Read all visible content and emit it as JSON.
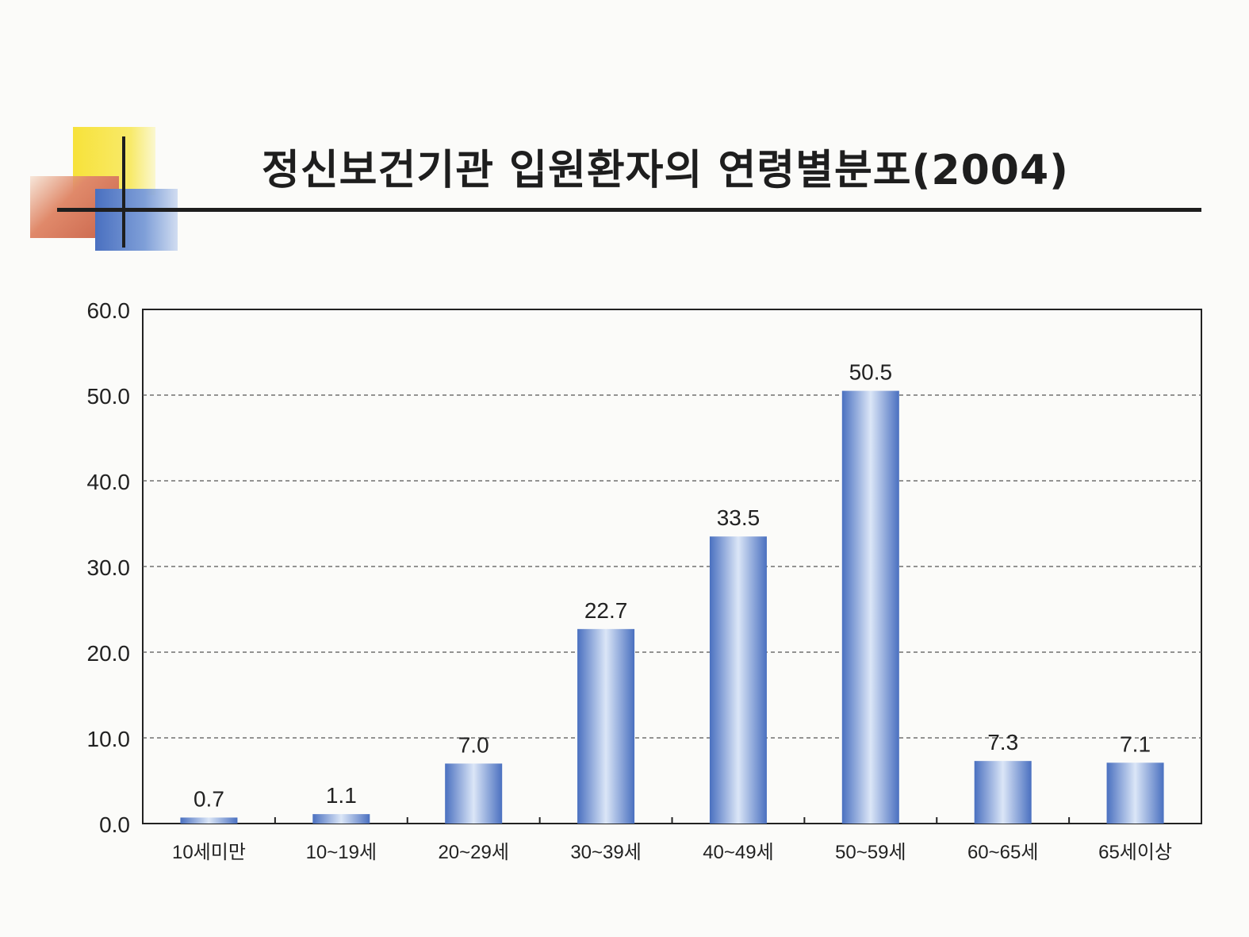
{
  "title": "정신보건기관 입원환자의 연령별분포(2004)",
  "chart_data": {
    "type": "bar",
    "title": "정신보건기관 입원환자의 연령별분포(2004)",
    "categories": [
      "10세미만",
      "10~19세",
      "20~29세",
      "30~39세",
      "40~49세",
      "50~59세",
      "60~65세",
      "65세이상"
    ],
    "values": [
      0.7,
      1.1,
      7.0,
      22.7,
      33.5,
      50.5,
      7.3,
      7.1
    ],
    "data_labels": [
      "0.7",
      "1.1",
      "7.0",
      "22.7",
      "33.5",
      "50.5",
      "7.3",
      "7.1"
    ],
    "y_ticks": [
      "0.0",
      "10.0",
      "20.0",
      "30.0",
      "40.0",
      "50.0",
      "60.0"
    ],
    "ylim": [
      0,
      60
    ],
    "xlabel": "",
    "ylabel": "",
    "grid": "horizontal dashed",
    "legend": "none",
    "bar_color": "#4a70c0",
    "bar_highlight": "#dbe6f7"
  }
}
